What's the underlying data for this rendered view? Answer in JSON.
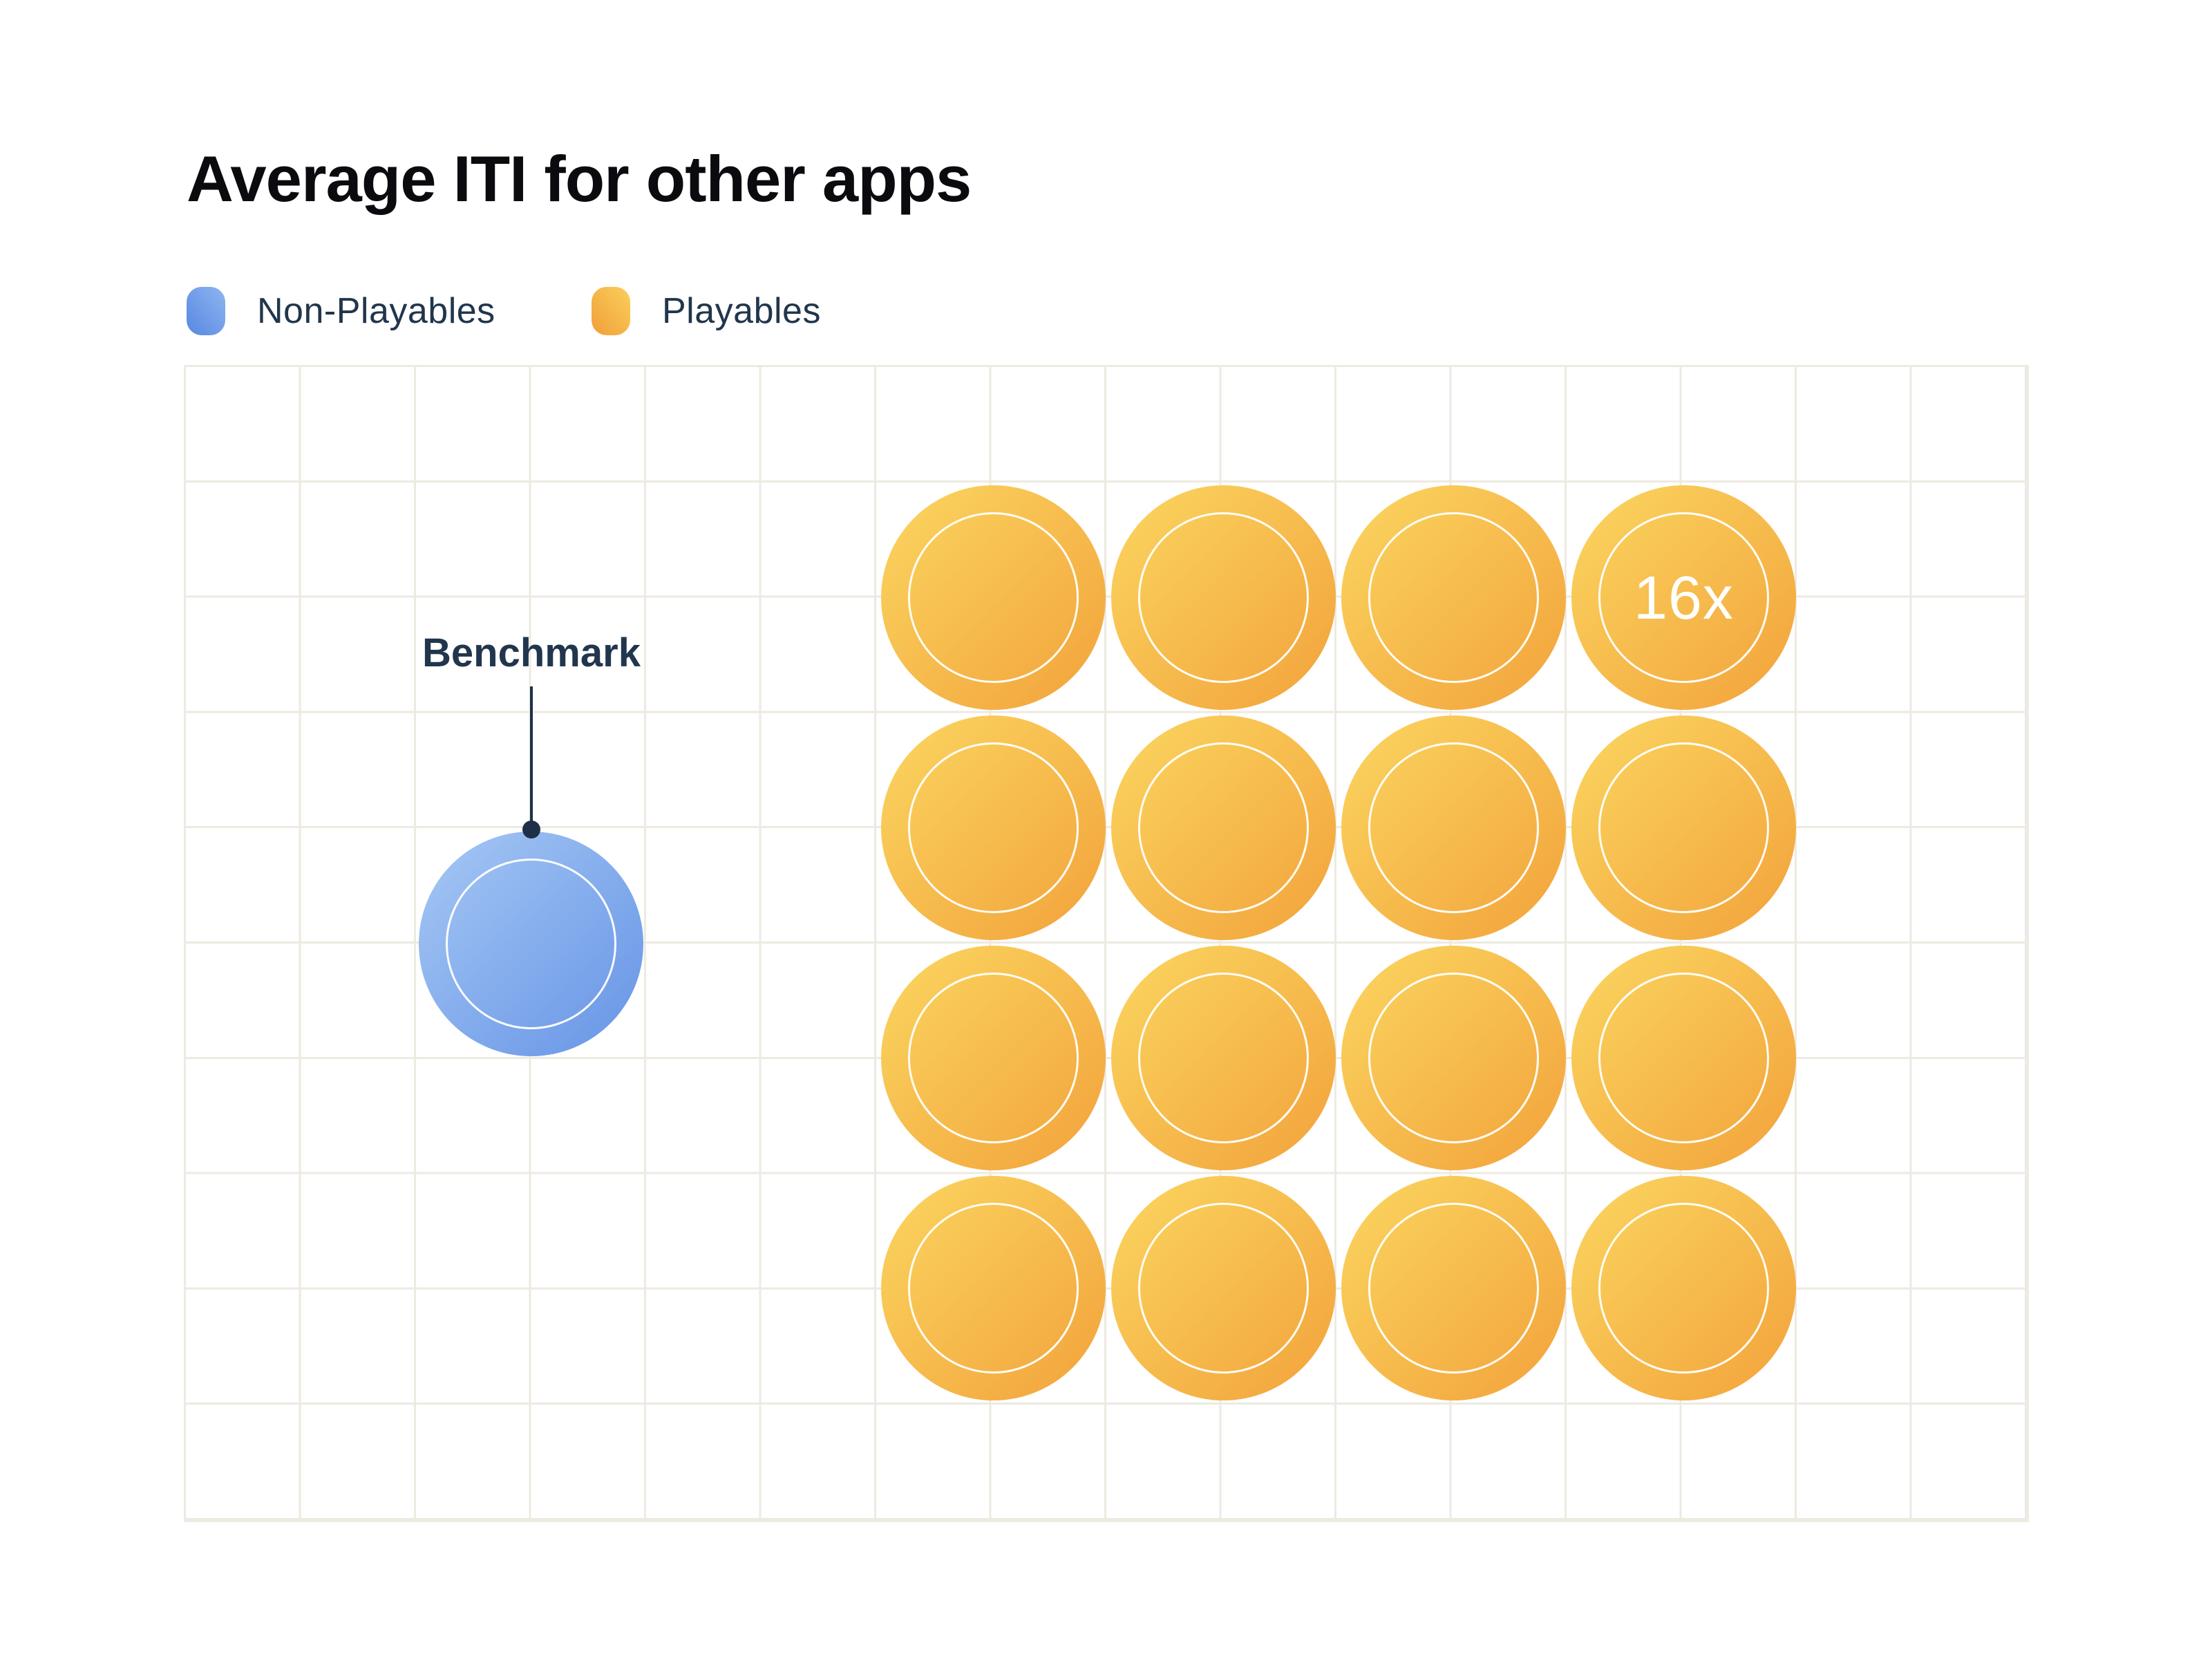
{
  "title": "Average ITI for other apps",
  "legend": {
    "items": [
      {
        "id": "non-playables",
        "label": "Non-Playables"
      },
      {
        "id": "playables",
        "label": "Playables"
      }
    ]
  },
  "annotation": {
    "label": "Benchmark"
  },
  "benchmark_circle": {
    "count": 1
  },
  "playables_grid": {
    "count": 16,
    "rows": 4,
    "cols": 4,
    "multiplier_label": "16x",
    "label_index": 3
  },
  "colors": {
    "title_color": "#0b0b0f",
    "navy": "#21364d",
    "navy_dark": "#1e3048",
    "grid_line": "#edeae1",
    "orange_start": "#fbd660",
    "orange_end": "#f2a23b",
    "blue_start": "#a6c8f4",
    "blue_end": "#6694e6",
    "legend_blue_light": "#8fb6f1",
    "legend_blue_dark": "#5787e0",
    "legend_orange_light": "#fbcf5b",
    "legend_orange_dark": "#f09f38"
  },
  "chart_data": {
    "type": "pictogram",
    "title": "Average ITI for other apps",
    "categories": [
      "Non-Playables",
      "Playables"
    ],
    "values": [
      1,
      16
    ],
    "series": [
      {
        "name": "Non-Playables",
        "value": 1,
        "icon_count": 1,
        "icon_color": "blue",
        "annotation": "Benchmark"
      },
      {
        "name": "Playables",
        "value": 16,
        "icon_count": 16,
        "icon_color": "orange",
        "icon_layout": "4x4",
        "data_label": "16x"
      }
    ],
    "relative_to": "Benchmark = 1",
    "legend_position": "top-left",
    "grid": "on",
    "axes": "none"
  }
}
